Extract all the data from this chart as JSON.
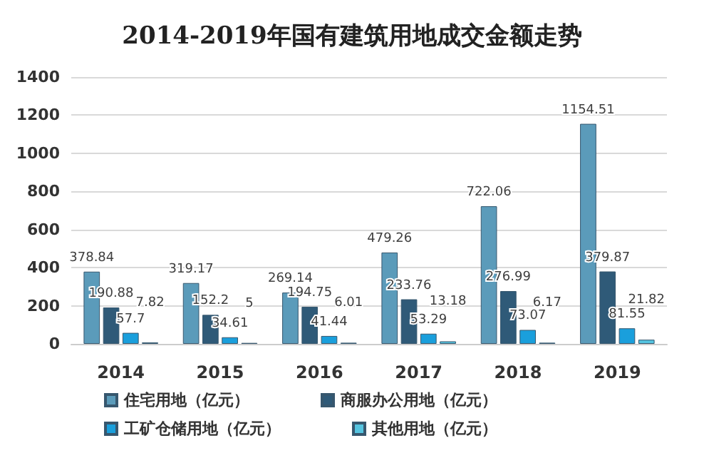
{
  "chart_data": {
    "type": "bar",
    "title": "2014-2019年国有建筑用地成交金额走势",
    "categories": [
      "2014",
      "2015",
      "2016",
      "2017",
      "2018",
      "2019"
    ],
    "series": [
      {
        "name": "住宅用地（亿元）",
        "color": "#5b9bba",
        "values": [
          378.84,
          319.17,
          269.14,
          479.26,
          722.06,
          1154.51
        ]
      },
      {
        "name": "商服办公用地（亿元）",
        "color": "#2f5a78",
        "values": [
          190.88,
          152.2,
          194.75,
          233.76,
          276.99,
          379.87
        ]
      },
      {
        "name": "工矿仓储用地（亿元）",
        "color": "#1a9fdc",
        "values": [
          57.7,
          34.61,
          41.44,
          53.29,
          73.07,
          81.55
        ]
      },
      {
        "name": "其他用地（亿元）",
        "color": "#55c4e0",
        "values": [
          7.82,
          5,
          6.01,
          13.18,
          6.17,
          21.82
        ]
      }
    ],
    "ylim": [
      0,
      1400
    ],
    "yticks": [
      0,
      200,
      400,
      600,
      800,
      1000,
      1200,
      1400
    ],
    "grid": "y",
    "legend": "bottom",
    "data_labels": true
  }
}
